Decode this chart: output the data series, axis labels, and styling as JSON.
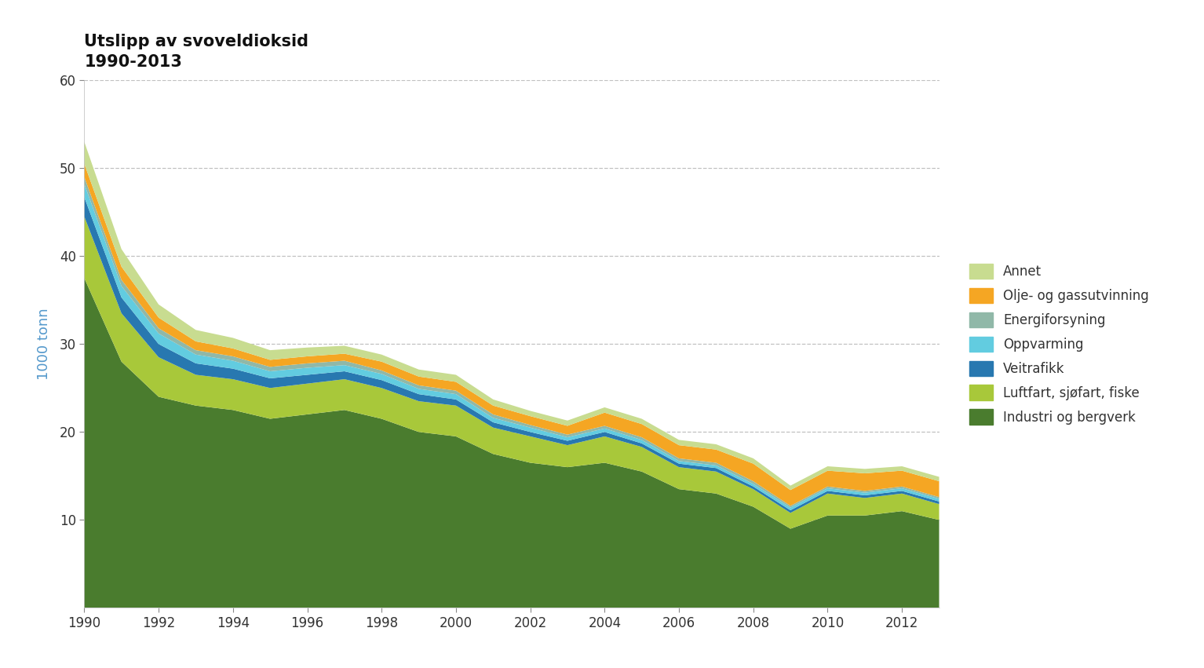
{
  "title_line1": "Utslipp av svoveldioksid",
  "title_line2": "1990-2013",
  "ylabel": "1000 tonn",
  "years": [
    1990,
    1991,
    1992,
    1993,
    1994,
    1995,
    1996,
    1997,
    1998,
    1999,
    2000,
    2001,
    2002,
    2003,
    2004,
    2005,
    2006,
    2007,
    2008,
    2009,
    2010,
    2011,
    2012,
    2013
  ],
  "series": {
    "Industri og bergverk": [
      37.5,
      28.0,
      24.0,
      23.0,
      22.5,
      21.5,
      22.0,
      22.5,
      21.5,
      20.0,
      19.5,
      17.5,
      16.5,
      16.0,
      16.5,
      15.5,
      13.5,
      13.0,
      11.5,
      9.0,
      10.5,
      10.5,
      11.0,
      10.0
    ],
    "Luftfart, sjøfart, fiske": [
      7.0,
      5.5,
      4.5,
      3.5,
      3.5,
      3.5,
      3.5,
      3.5,
      3.5,
      3.5,
      3.5,
      3.0,
      3.0,
      2.5,
      3.0,
      2.8,
      2.5,
      2.5,
      2.0,
      1.8,
      2.5,
      2.0,
      2.0,
      1.8
    ],
    "Veitrafikk": [
      2.2,
      1.8,
      1.5,
      1.3,
      1.2,
      1.1,
      1.0,
      0.9,
      0.9,
      0.8,
      0.7,
      0.6,
      0.5,
      0.5,
      0.5,
      0.4,
      0.4,
      0.4,
      0.3,
      0.3,
      0.3,
      0.3,
      0.3,
      0.3
    ],
    "Oppvarming": [
      1.5,
      1.3,
      1.2,
      1.0,
      0.9,
      0.8,
      0.8,
      0.7,
      0.7,
      0.6,
      0.6,
      0.5,
      0.5,
      0.4,
      0.4,
      0.4,
      0.3,
      0.3,
      0.3,
      0.3,
      0.3,
      0.3,
      0.3,
      0.3
    ],
    "Energiforsyning": [
      0.8,
      0.7,
      0.6,
      0.5,
      0.5,
      0.5,
      0.5,
      0.5,
      0.4,
      0.4,
      0.4,
      0.4,
      0.3,
      0.3,
      0.3,
      0.3,
      0.3,
      0.3,
      0.3,
      0.2,
      0.2,
      0.2,
      0.2,
      0.2
    ],
    "Olje- og gassutvinning": [
      1.5,
      1.5,
      1.2,
      1.0,
      0.9,
      0.8,
      0.8,
      0.8,
      1.0,
      1.0,
      1.0,
      1.0,
      1.0,
      1.0,
      1.5,
      1.5,
      1.5,
      1.5,
      2.0,
      1.8,
      1.8,
      2.0,
      1.8,
      1.8
    ],
    "Annet": [
      2.5,
      2.0,
      1.5,
      1.3,
      1.2,
      1.1,
      1.0,
      0.9,
      0.8,
      0.8,
      0.8,
      0.7,
      0.6,
      0.6,
      0.6,
      0.6,
      0.6,
      0.6,
      0.6,
      0.5,
      0.5,
      0.5,
      0.5,
      0.5
    ]
  },
  "colors": {
    "Industri og bergverk": "#4a7c2e",
    "Luftfart, sjøfart, fiske": "#a8c83a",
    "Veitrafikk": "#2878b0",
    "Oppvarming": "#62cce0",
    "Energiforsyning": "#90b8a8",
    "Olje- og gassutvinning": "#f5a623",
    "Annet": "#c8dc90"
  },
  "legend_order": [
    "Annet",
    "Olje- og gassutvinning",
    "Energiforsyning",
    "Oppvarming",
    "Veitrafikk",
    "Luftfart, sjøfart, fiske",
    "Industri og bergverk"
  ],
  "stack_order": [
    "Industri og bergverk",
    "Luftfart, sjøfart, fiske",
    "Veitrafikk",
    "Oppvarming",
    "Energiforsyning",
    "Olje- og gassutvinning",
    "Annet"
  ],
  "ylim": [
    0,
    60
  ],
  "yticks": [
    10,
    20,
    30,
    40,
    50,
    60
  ],
  "background_color": "#ffffff",
  "plot_bg_color": "#ffffff",
  "grid_color": "#bbbbbb"
}
